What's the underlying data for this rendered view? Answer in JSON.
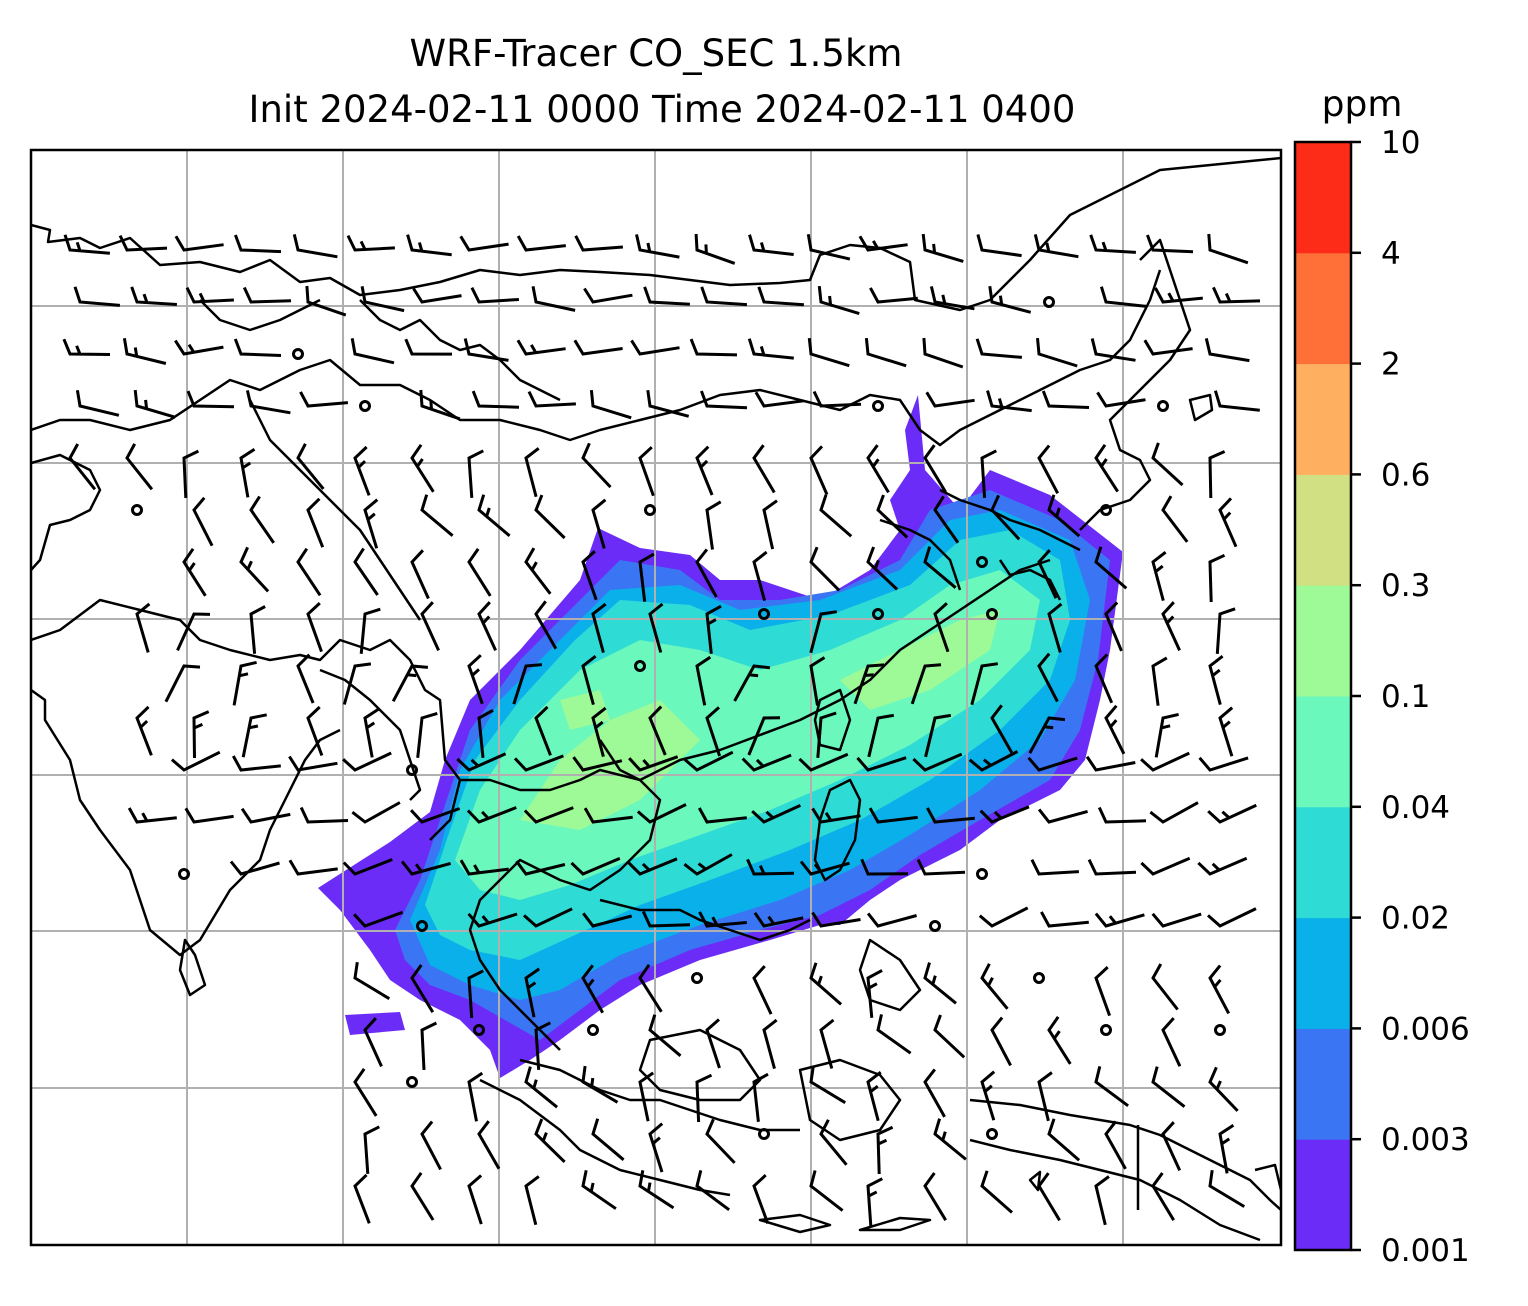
{
  "title": {
    "line1": "WRF-Tracer CO_SEC 1.5km",
    "line2": "Init 2024-02-11 0000 Time 2024-02-11 0400"
  },
  "colorbar": {
    "unit": "ppm",
    "levels": [
      "0.001",
      "0.003",
      "0.006",
      "0.02",
      "0.04",
      "0.1",
      "0.3",
      "0.6",
      "2",
      "4",
      "10"
    ],
    "colors": [
      "#6a2cf6",
      "#3a76f3",
      "#0ab0ea",
      "#2fdbd5",
      "#6af8bd",
      "#9efa96",
      "#d0e082",
      "#feb060",
      "#ff7038",
      "#fd2c18"
    ]
  },
  "map": {
    "gridlines": true,
    "fill_colors": {
      "low": "#6a2cf6",
      "mid1": "#3a76f3",
      "mid2": "#0ab0ea",
      "mid3": "#2fdbd5",
      "high": "#6af8bd",
      "peak": "#9efa96"
    }
  }
}
